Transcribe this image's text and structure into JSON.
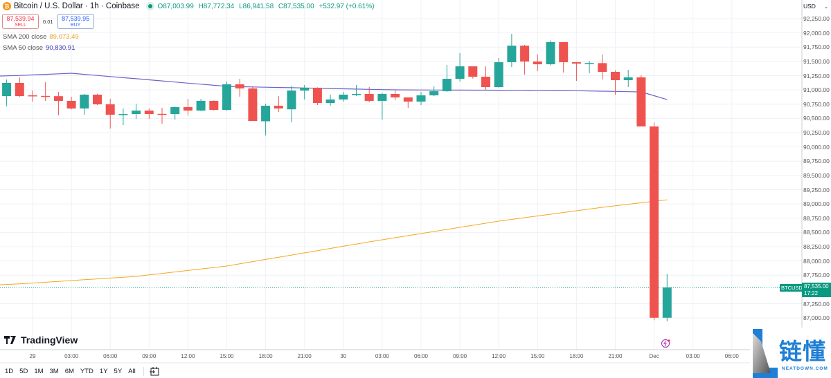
{
  "header": {
    "title": "Bitcoin / U.S. Dollar · 1h · Coinbase",
    "coin_icon": "bitcoin-icon",
    "open": "O87,003.99",
    "high": "H87,772.34",
    "low": "L86,941.58",
    "close": "C87,535.00",
    "change": "+532.97 (+0.61%)"
  },
  "trade": {
    "sell_price": "87,539.94",
    "sell_label": "SELL",
    "spread": "0.01",
    "buy_price": "87,539.95",
    "buy_label": "BUY"
  },
  "indicators": [
    {
      "label": "SMA 200 close",
      "value": "89,073.49",
      "color": "#f5a623"
    },
    {
      "label": "SMA 50 close",
      "value": "90,830.91",
      "color": "#3d3ab5"
    }
  ],
  "price_axis": {
    "currency": "USD",
    "labels": [
      "92,250.00",
      "92,000.00",
      "91,750.00",
      "91,500.00",
      "91,250.00",
      "91,000.00",
      "90,750.00",
      "90,500.00",
      "90,250.00",
      "90,000.00",
      "89,750.00",
      "89,500.00",
      "89,250.00",
      "89,000.00",
      "88,750.00",
      "88,500.00",
      "88,250.00",
      "88,000.00",
      "87,750.00",
      "87,250.00",
      "87,000.00"
    ],
    "current_symbol": "BTCUSD",
    "current_price": "87,535.00",
    "countdown": "17:22"
  },
  "time_axis": {
    "labels": [
      {
        "text": "29",
        "index": 2
      },
      {
        "text": "03:00",
        "index": 5
      },
      {
        "text": "06:00",
        "index": 8
      },
      {
        "text": "09:00",
        "index": 11
      },
      {
        "text": "12:00",
        "index": 14
      },
      {
        "text": "15:00",
        "index": 17
      },
      {
        "text": "18:00",
        "index": 20
      },
      {
        "text": "21:00",
        "index": 23
      },
      {
        "text": "30",
        "index": 26
      },
      {
        "text": "03:00",
        "index": 29
      },
      {
        "text": "06:00",
        "index": 32
      },
      {
        "text": "09:00",
        "index": 35
      },
      {
        "text": "12:00",
        "index": 38
      },
      {
        "text": "15:00",
        "index": 41
      },
      {
        "text": "18:00",
        "index": 44
      },
      {
        "text": "21:00",
        "index": 47
      },
      {
        "text": "Dec",
        "index": 50
      },
      {
        "text": "03:00",
        "index": 53
      },
      {
        "text": "06:00",
        "index": 56
      }
    ]
  },
  "colors": {
    "up": "#26a69a",
    "down": "#ef5350",
    "grid": "#eef1f5",
    "sma200": "#f5a623",
    "sma50": "#6b63c9",
    "last_price": "#089981"
  },
  "chart_data": {
    "type": "candlestick",
    "interval": "1h",
    "ylim": [
      86800,
      92350
    ],
    "current_price": 87535.0,
    "candles": [
      [
        90892,
        91183,
        90711,
        91123
      ],
      [
        91123,
        91220,
        90880,
        90892
      ],
      [
        90905,
        90989,
        90795,
        90895
      ],
      [
        90895,
        91135,
        90808,
        90890
      ],
      [
        90890,
        90965,
        90553,
        90808
      ],
      [
        90808,
        90880,
        90660,
        90674
      ],
      [
        90674,
        90930,
        90565,
        90917
      ],
      [
        90917,
        90930,
        90735,
        90747
      ],
      [
        90747,
        90844,
        90323,
        90565
      ],
      [
        90565,
        90674,
        90383,
        90577
      ],
      [
        90577,
        90759,
        90492,
        90638
      ],
      [
        90638,
        90674,
        90492,
        90577
      ],
      [
        90580,
        90686,
        90408,
        90572
      ],
      [
        90577,
        90710,
        90480,
        90698
      ],
      [
        90698,
        90844,
        90553,
        90638
      ],
      [
        90638,
        90844,
        90625,
        90808
      ],
      [
        90808,
        90815,
        90638,
        90650
      ],
      [
        90650,
        91147,
        90638,
        91098
      ],
      [
        91098,
        91195,
        90880,
        91026
      ],
      [
        91026,
        91062,
        90456,
        90456
      ],
      [
        90450,
        90759,
        90201,
        90723
      ],
      [
        90723,
        90892,
        90613,
        90674
      ],
      [
        90660,
        91074,
        90432,
        90989
      ],
      [
        90989,
        91086,
        90832,
        91038
      ],
      [
        91038,
        91045,
        90735,
        90771
      ],
      [
        90771,
        90917,
        90723,
        90832
      ],
      [
        90832,
        90965,
        90795,
        90917
      ],
      [
        90917,
        91086,
        90892,
        90929
      ],
      [
        90929,
        91050,
        90783,
        90808
      ],
      [
        90808,
        90953,
        90480,
        90929
      ],
      [
        90929,
        90989,
        90820,
        90868
      ],
      [
        90868,
        90870,
        90686,
        90795
      ],
      [
        90795,
        90965,
        90735,
        90905
      ],
      [
        90905,
        91062,
        90890,
        90977
      ],
      [
        90977,
        91438,
        90965,
        91195
      ],
      [
        91195,
        91644,
        91147,
        91414
      ],
      [
        91414,
        91414,
        91200,
        91232
      ],
      [
        91232,
        91414,
        90989,
        91050
      ],
      [
        91050,
        91559,
        91040,
        91486
      ],
      [
        91486,
        91983,
        91401,
        91777
      ],
      [
        91777,
        91790,
        91268,
        91498
      ],
      [
        91498,
        91620,
        91329,
        91450
      ],
      [
        91450,
        91870,
        91430,
        91838
      ],
      [
        91838,
        91845,
        91305,
        91486
      ],
      [
        91486,
        91490,
        91159,
        91462
      ],
      [
        91462,
        91510,
        91292,
        91472
      ],
      [
        91470,
        91620,
        91183,
        91317
      ],
      [
        91317,
        91341,
        90917,
        91171
      ],
      [
        91171,
        91353,
        91050,
        91220
      ],
      [
        91220,
        91256,
        90359,
        90359
      ],
      [
        90359,
        90430,
        86960,
        87004
      ],
      [
        87003.99,
        87772.34,
        86941.58,
        87535.0
      ]
    ],
    "candle_fields": [
      "open",
      "high",
      "low",
      "close"
    ],
    "sma50": [
      [
        0,
        91244
      ],
      [
        5,
        91292
      ],
      [
        17,
        91062
      ],
      [
        30,
        91001
      ],
      [
        43,
        90990
      ],
      [
        49,
        90965
      ],
      [
        51,
        90830.91
      ]
    ],
    "sma200": [
      [
        0,
        87583
      ],
      [
        10,
        87729
      ],
      [
        17,
        87911
      ],
      [
        28,
        88335
      ],
      [
        38,
        88699
      ],
      [
        46,
        88941
      ],
      [
        51,
        89073.49
      ]
    ]
  },
  "branding": {
    "logo": "TradingView",
    "watermark_cn": "链懂",
    "watermark_en": "NEATDOWN.COM"
  },
  "range_bar": {
    "items": [
      "1D",
      "5D",
      "1M",
      "3M",
      "6M",
      "YTD",
      "1Y",
      "5Y",
      "All"
    ],
    "calendar_icon": "goto-date-icon"
  }
}
